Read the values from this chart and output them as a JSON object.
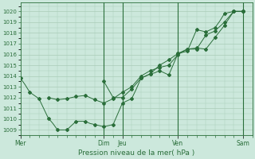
{
  "title": "Pression niveau de la mer( hPa )",
  "bg_color": "#cce8dc",
  "grid_color": "#aaccb8",
  "line_color": "#2a6e3a",
  "ylim": [
    1008.5,
    1020.8
  ],
  "yticks": [
    1009,
    1010,
    1011,
    1012,
    1013,
    1014,
    1015,
    1016,
    1017,
    1018,
    1019,
    1020
  ],
  "day_labels": [
    "Mer",
    "Dim",
    "Jeu",
    "Ven",
    "Sam"
  ],
  "day_positions": [
    0,
    9,
    11,
    17,
    24
  ],
  "vlines": [
    9,
    11,
    17,
    24
  ],
  "xlim": [
    0,
    25
  ],
  "series": [
    {
      "x": [
        0,
        0.5,
        1,
        1.5,
        2,
        2.5,
        3,
        3.5,
        4,
        4.5,
        5,
        5.5,
        6,
        6.5,
        7,
        7.5,
        8,
        8.5,
        9,
        9.5,
        10,
        10.5,
        11,
        11.5,
        12,
        12.5,
        13,
        13.5,
        14,
        14.5,
        15,
        15.5,
        16,
        16.5,
        17,
        17.5,
        18,
        18.5,
        19,
        19.5,
        20,
        20.5,
        21,
        21.5,
        22,
        22.5,
        23,
        23.5,
        24
      ],
      "y": [
        1013.8,
        1013.2,
        1012.5,
        1012.2,
        1011.9,
        1011.0,
        1010.1,
        1009.6,
        1009.0,
        1009.0,
        1009.0,
        1009.4,
        1009.8,
        1009.8,
        1009.8,
        1009.6,
        1009.5,
        1009.4,
        1009.3,
        1009.4,
        1009.5,
        1010.5,
        1011.5,
        1011.7,
        1011.9,
        1012.8,
        1013.8,
        1014.0,
        1014.2,
        1014.3,
        1014.5,
        1014.3,
        1014.1,
        1015.1,
        1016.1,
        1016.2,
        1016.3,
        1017.3,
        1018.3,
        1018.2,
        1018.1,
        1018.3,
        1018.5,
        1019.1,
        1019.8,
        1019.9,
        1020.0,
        1020.0,
        1020.0
      ]
    },
    {
      "x": [
        3,
        3.5,
        4,
        4.5,
        5,
        5.5,
        6,
        6.5,
        7,
        7.5,
        8,
        8.5,
        9,
        9.5,
        10,
        10.5,
        11,
        11.5,
        12,
        12.5,
        13,
        13.5,
        14,
        14.5,
        15,
        15.5,
        16,
        16.5,
        17,
        17.5,
        18,
        18.5,
        19,
        19.5,
        20,
        20.5,
        21,
        21.5,
        22,
        22.5,
        23,
        23.5,
        24
      ],
      "y": [
        1012.0,
        1011.9,
        1011.8,
        1011.85,
        1011.9,
        1012.0,
        1012.1,
        1012.15,
        1012.2,
        1012.0,
        1011.8,
        1011.65,
        1011.5,
        1011.7,
        1011.9,
        1012.2,
        1012.5,
        1012.75,
        1013.0,
        1013.5,
        1014.0,
        1014.25,
        1014.5,
        1014.65,
        1014.8,
        1014.9,
        1015.0,
        1015.5,
        1016.0,
        1016.25,
        1016.5,
        1016.5,
        1016.5,
        1017.15,
        1017.8,
        1018.0,
        1018.2,
        1018.6,
        1019.0,
        1019.5,
        1020.0,
        1020.0,
        1020.0
      ]
    },
    {
      "x": [
        9,
        9.5,
        10,
        10.5,
        11,
        11.5,
        12,
        12.5,
        13,
        13.5,
        14,
        14.5,
        15,
        15.5,
        16,
        16.5,
        17,
        17.5,
        18,
        18.5,
        19,
        19.5,
        20,
        20.5,
        21,
        21.5,
        22,
        22.5,
        23,
        23.5,
        24
      ],
      "y": [
        1013.5,
        1012.75,
        1012.0,
        1012.0,
        1012.0,
        1012.4,
        1012.8,
        1013.3,
        1013.8,
        1014.0,
        1014.2,
        1014.6,
        1015.0,
        1015.25,
        1015.5,
        1015.8,
        1016.1,
        1016.3,
        1016.5,
        1016.55,
        1016.6,
        1016.55,
        1016.5,
        1017.05,
        1017.6,
        1018.15,
        1018.7,
        1019.35,
        1020.0,
        1020.0,
        1020.0
      ]
    }
  ]
}
